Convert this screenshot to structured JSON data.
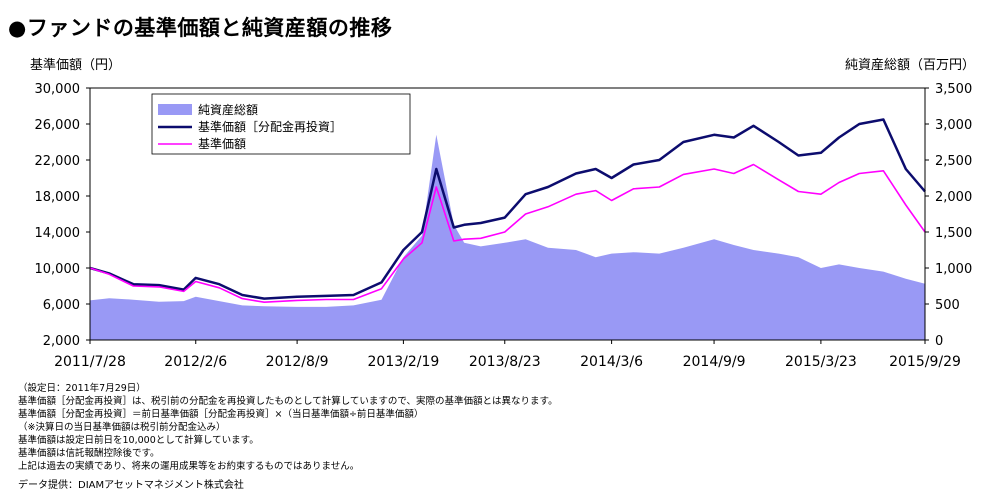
{
  "title": "●ファンドの基準価額と純資産額の推移",
  "left_axis_unit": "基準価額（円）",
  "right_axis_unit": "純資産総額（百万円）",
  "notes": [
    "（設定日：2011年7月29日）",
    "基準価額［分配金再投資］は、税引前の分配金を再投資したものとして計算していますので、実際の基準価額とは異なります。",
    "基準価額［分配金再投資］＝前日基準価額［分配金再投資］×（当日基準価額÷前日基準価額）",
    "（※決算日の当日基準価額は税引前分配金込み）",
    "基準価額は設定日前日を10,000として計算しています。",
    "基準価額は信託報酬控除後です。",
    "上記は過去の実績であり、将来の運用成果等をお約束するものではありません。"
  ],
  "source": "データ提供：DIAMアセットマネジメント株式会社",
  "colors": {
    "net_assets": "#9999f5",
    "nav_reinvested": "#0c0c6e",
    "nav": "#ff00ff"
  },
  "chart_data": {
    "type": "area+line",
    "x": [
      "2011/7/28",
      "2011/9/1",
      "2011/10/15",
      "2011/12/1",
      "2012/1/15",
      "2012/2/6",
      "2012/3/20",
      "2012/5/1",
      "2012/6/10",
      "2012/8/9",
      "2012/10/1",
      "2012/11/20",
      "2013/1/10",
      "2013/2/19",
      "2013/3/25",
      "2013/4/20",
      "2013/5/22",
      "2013/6/10",
      "2013/7/10",
      "2013/8/23",
      "2013/9/30",
      "2013/11/10",
      "2013/12/31",
      "2014/2/5",
      "2014/3/6",
      "2014/4/15",
      "2014/6/1",
      "2014/7/15",
      "2014/9/9",
      "2014/10/15",
      "2014/11/20",
      "2015/1/5",
      "2015/2/10",
      "2015/3/23",
      "2015/4/25",
      "2015/6/1",
      "2015/7/15",
      "2015/8/25",
      "2015/9/29"
    ],
    "x_tick_labels": [
      "2011/7/28",
      "2012/2/6",
      "2012/8/9",
      "2013/2/19",
      "2013/8/23",
      "2014/3/6",
      "2014/9/9",
      "2015/3/23",
      "2015/9/29"
    ],
    "series": [
      {
        "name": "純資産総額",
        "type": "area",
        "axis": "right",
        "values": [
          550,
          580,
          560,
          530,
          540,
          600,
          540,
          480,
          470,
          460,
          460,
          480,
          560,
          1150,
          1450,
          2850,
          1600,
          1350,
          1300,
          1350,
          1400,
          1280,
          1250,
          1150,
          1200,
          1220,
          1200,
          1280,
          1400,
          1320,
          1250,
          1200,
          1150,
          1000,
          1050,
          1000,
          950,
          850,
          780
        ]
      },
      {
        "name": "基準価額［分配金再投資］",
        "type": "line",
        "axis": "left",
        "values": [
          10000,
          9400,
          8200,
          8100,
          7600,
          8900,
          8200,
          7000,
          6600,
          6800,
          6900,
          7000,
          8400,
          12000,
          14000,
          21000,
          14500,
          14800,
          15000,
          15600,
          18200,
          19000,
          20500,
          21000,
          20000,
          21500,
          22000,
          24000,
          24800,
          24500,
          25800,
          24000,
          22500,
          22800,
          24500,
          26000,
          26500,
          21000,
          18500
        ]
      },
      {
        "name": "基準価額",
        "type": "line",
        "axis": "left",
        "values": [
          10000,
          9300,
          8000,
          7900,
          7400,
          8500,
          7800,
          6600,
          6200,
          6400,
          6500,
          6500,
          7700,
          11000,
          12800,
          19000,
          13000,
          13200,
          13300,
          14000,
          16000,
          16800,
          18200,
          18600,
          17500,
          18800,
          19000,
          20400,
          21000,
          20500,
          21500,
          19800,
          18500,
          18200,
          19500,
          20500,
          20800,
          17000,
          14000
        ]
      }
    ],
    "y_left": {
      "min": 2000,
      "max": 30000,
      "ticks": [
        "30,000",
        "26,000",
        "22,000",
        "18,000",
        "14,000",
        "10,000",
        "6,000",
        "2,000"
      ]
    },
    "y_right": {
      "min": 0,
      "max": 3500,
      "ticks": [
        "3,500",
        "3,000",
        "2,500",
        "2,000",
        "1,500",
        "1,000",
        "500",
        "0"
      ]
    },
    "legend_position": "top-left inside plot",
    "grid": false
  }
}
